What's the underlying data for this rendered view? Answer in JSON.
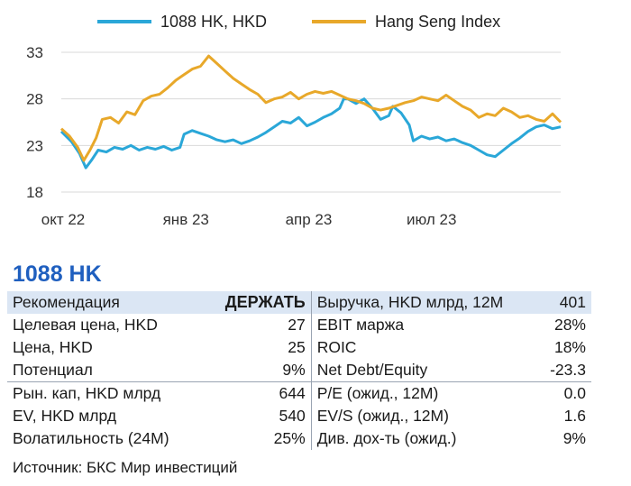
{
  "chart_data": {
    "type": "line",
    "ylim": [
      18,
      33
    ],
    "yticks": [
      18,
      23,
      28,
      33
    ],
    "xlim": [
      0,
      12.2
    ],
    "xticks": [
      {
        "pos": 0,
        "label": "окт 22"
      },
      {
        "pos": 3,
        "label": "янв 23"
      },
      {
        "pos": 6,
        "label": "апр 23"
      },
      {
        "pos": 9,
        "label": "июл 23"
      }
    ],
    "grid": "horizontal",
    "legend_position": "top",
    "series": [
      {
        "name": "1088 HK, HKD",
        "color": "#2aa7d8",
        "points": [
          [
            0,
            24.5
          ],
          [
            0.25,
            23.4
          ],
          [
            0.45,
            22.1
          ],
          [
            0.6,
            20.6
          ],
          [
            0.75,
            21.5
          ],
          [
            0.9,
            22.5
          ],
          [
            1.1,
            22.3
          ],
          [
            1.3,
            22.8
          ],
          [
            1.5,
            22.6
          ],
          [
            1.7,
            23.0
          ],
          [
            1.9,
            22.5
          ],
          [
            2.1,
            22.8
          ],
          [
            2.3,
            22.6
          ],
          [
            2.5,
            22.9
          ],
          [
            2.7,
            22.5
          ],
          [
            2.9,
            22.8
          ],
          [
            3.0,
            24.2
          ],
          [
            3.2,
            24.6
          ],
          [
            3.4,
            24.3
          ],
          [
            3.6,
            24.0
          ],
          [
            3.8,
            23.6
          ],
          [
            4.0,
            23.4
          ],
          [
            4.2,
            23.6
          ],
          [
            4.4,
            23.2
          ],
          [
            4.6,
            23.5
          ],
          [
            4.8,
            23.9
          ],
          [
            5.0,
            24.4
          ],
          [
            5.2,
            25.0
          ],
          [
            5.4,
            25.6
          ],
          [
            5.6,
            25.4
          ],
          [
            5.8,
            26.0
          ],
          [
            6.0,
            25.1
          ],
          [
            6.2,
            25.5
          ],
          [
            6.4,
            26.0
          ],
          [
            6.6,
            26.4
          ],
          [
            6.8,
            27.0
          ],
          [
            6.9,
            28.0
          ],
          [
            7.0,
            28.0
          ],
          [
            7.2,
            27.5
          ],
          [
            7.4,
            28.0
          ],
          [
            7.6,
            27.0
          ],
          [
            7.8,
            25.8
          ],
          [
            8.0,
            26.2
          ],
          [
            8.1,
            27.2
          ],
          [
            8.3,
            26.5
          ],
          [
            8.5,
            25.2
          ],
          [
            8.6,
            23.5
          ],
          [
            8.8,
            24.0
          ],
          [
            9.0,
            23.7
          ],
          [
            9.2,
            23.9
          ],
          [
            9.4,
            23.5
          ],
          [
            9.6,
            23.7
          ],
          [
            9.8,
            23.3
          ],
          [
            10.0,
            23.0
          ],
          [
            10.2,
            22.5
          ],
          [
            10.4,
            22.0
          ],
          [
            10.6,
            21.8
          ],
          [
            10.8,
            22.5
          ],
          [
            11.0,
            23.2
          ],
          [
            11.2,
            23.8
          ],
          [
            11.4,
            24.5
          ],
          [
            11.6,
            25.0
          ],
          [
            11.8,
            25.2
          ],
          [
            12.0,
            24.8
          ],
          [
            12.2,
            25.0
          ]
        ]
      },
      {
        "name": "Hang Seng Index",
        "color": "#e8a82a",
        "points": [
          [
            0,
            24.8
          ],
          [
            0.2,
            24.0
          ],
          [
            0.4,
            22.8
          ],
          [
            0.55,
            21.4
          ],
          [
            0.7,
            22.5
          ],
          [
            0.85,
            23.8
          ],
          [
            1.0,
            25.8
          ],
          [
            1.2,
            26.0
          ],
          [
            1.4,
            25.4
          ],
          [
            1.6,
            26.6
          ],
          [
            1.8,
            26.3
          ],
          [
            2.0,
            27.8
          ],
          [
            2.2,
            28.3
          ],
          [
            2.4,
            28.5
          ],
          [
            2.6,
            29.2
          ],
          [
            2.8,
            30.0
          ],
          [
            3.0,
            30.6
          ],
          [
            3.2,
            31.2
          ],
          [
            3.4,
            31.5
          ],
          [
            3.6,
            32.6
          ],
          [
            3.8,
            31.8
          ],
          [
            4.0,
            31.0
          ],
          [
            4.2,
            30.2
          ],
          [
            4.4,
            29.6
          ],
          [
            4.6,
            29.0
          ],
          [
            4.8,
            28.5
          ],
          [
            5.0,
            27.6
          ],
          [
            5.2,
            28.0
          ],
          [
            5.4,
            28.2
          ],
          [
            5.6,
            28.7
          ],
          [
            5.8,
            28.0
          ],
          [
            6.0,
            28.5
          ],
          [
            6.2,
            28.8
          ],
          [
            6.4,
            28.6
          ],
          [
            6.6,
            28.8
          ],
          [
            6.8,
            28.4
          ],
          [
            7.0,
            28.0
          ],
          [
            7.2,
            27.8
          ],
          [
            7.4,
            27.5
          ],
          [
            7.6,
            27.0
          ],
          [
            7.8,
            26.8
          ],
          [
            8.0,
            27.0
          ],
          [
            8.2,
            27.3
          ],
          [
            8.4,
            27.6
          ],
          [
            8.6,
            27.8
          ],
          [
            8.8,
            28.2
          ],
          [
            9.0,
            28.0
          ],
          [
            9.2,
            27.8
          ],
          [
            9.4,
            28.4
          ],
          [
            9.6,
            27.8
          ],
          [
            9.8,
            27.2
          ],
          [
            10.0,
            26.8
          ],
          [
            10.2,
            26.0
          ],
          [
            10.4,
            26.4
          ],
          [
            10.6,
            26.2
          ],
          [
            10.8,
            27.0
          ],
          [
            11.0,
            26.6
          ],
          [
            11.2,
            26.0
          ],
          [
            11.4,
            26.2
          ],
          [
            11.6,
            25.8
          ],
          [
            11.8,
            25.6
          ],
          [
            12.0,
            26.4
          ],
          [
            12.2,
            25.5
          ]
        ]
      }
    ]
  },
  "ticker": "1088 HK",
  "table": [
    {
      "l1": "Рекомендация",
      "v1": "ДЕРЖАТЬ",
      "l2": "Выручка, HKD млрд, 12M",
      "v2": "401"
    },
    {
      "l1": "Целевая цена, HKD",
      "v1": "27",
      "l2": "EBIT маржа",
      "v2": "28%"
    },
    {
      "l1": "Цена, HKD",
      "v1": "25",
      "l2": "ROIC",
      "v2": "18%"
    },
    {
      "l1": "Потенциал",
      "v1": "9%",
      "l2": "Net Debt/Equity",
      "v2": "-23.3"
    },
    {
      "l1": "Рын. кап, HKD млрд",
      "v1": "644",
      "l2": "P/E (ожид., 12M)",
      "v2": "0.0"
    },
    {
      "l1": "EV, HKD млрд",
      "v1": "540",
      "l2": "EV/S (ожид., 12M)",
      "v2": "1.6"
    },
    {
      "l1": "Волатильность (24M)",
      "v1": "25%",
      "l2": "Див. дох-ть (ожид.)",
      "v2": "9%"
    }
  ],
  "source": "Источник: БКС Мир инвестиций"
}
